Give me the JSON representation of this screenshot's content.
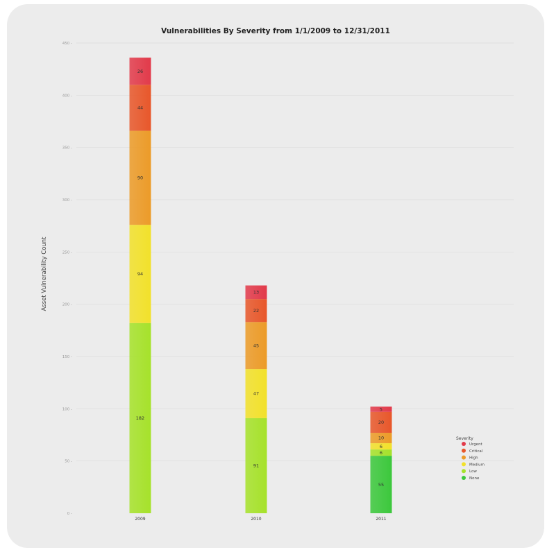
{
  "chart_data": {
    "type": "bar",
    "stacked": true,
    "title": "Vulnerabilities By Severity from 1/1/2009 to 12/31/2011",
    "xlabel": "",
    "ylabel": "Asset Vulnerability Count",
    "ylim": [
      0,
      450
    ],
    "yticks": [
      0,
      50,
      100,
      150,
      200,
      250,
      300,
      350,
      400,
      450
    ],
    "ytick_labels": [
      "0 -",
      "50 -",
      "100 -",
      "150 -",
      "200 -",
      "250 -",
      "300 -",
      "350 -",
      "400 -",
      "450 -"
    ],
    "grid": true,
    "categories": [
      "2009",
      "2010",
      "2011"
    ],
    "legend": {
      "title": "Severity",
      "position": "right"
    },
    "series": [
      {
        "name": "None",
        "color": "#3cc83c",
        "values": [
          0,
          0,
          55
        ],
        "labels": [
          "",
          "",
          "55"
        ]
      },
      {
        "name": "Low",
        "color": "#a6e22a",
        "values": [
          182,
          91,
          6
        ],
        "labels": [
          "182",
          "91",
          "6"
        ]
      },
      {
        "name": "Medium",
        "color": "#f2e12a",
        "values": [
          94,
          47,
          6
        ],
        "labels": [
          "94",
          "47",
          "6"
        ]
      },
      {
        "name": "High",
        "color": "#ec9b28",
        "values": [
          90,
          45,
          10
        ],
        "labels": [
          "90",
          "45",
          "10"
        ]
      },
      {
        "name": "Critical",
        "color": "#e8572a",
        "values": [
          44,
          22,
          20
        ],
        "labels": [
          "44",
          "22",
          "20"
        ]
      },
      {
        "name": "Urgent",
        "color": "#e23a4a",
        "values": [
          26,
          13,
          5
        ],
        "labels": [
          "26",
          "13",
          "5"
        ]
      }
    ]
  }
}
